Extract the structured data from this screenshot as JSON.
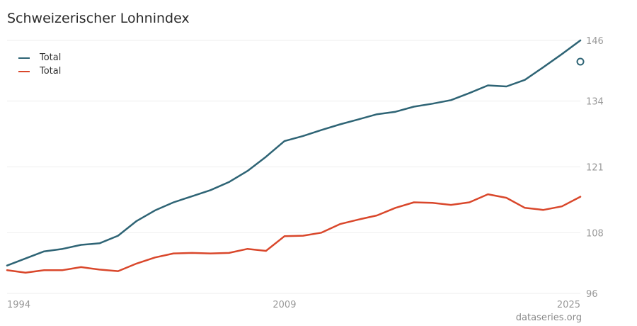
{
  "chart_data": {
    "type": "line",
    "title": "Schweizerischer Lohnindex",
    "xlabel": "",
    "ylabel": "",
    "x": [
      1994,
      1995,
      1996,
      1997,
      1998,
      1999,
      2000,
      2001,
      2002,
      2003,
      2004,
      2005,
      2006,
      2007,
      2008,
      2009,
      2010,
      2011,
      2012,
      2013,
      2014,
      2015,
      2016,
      2017,
      2018,
      2019,
      2020,
      2021,
      2022,
      2023,
      2024,
      2025
    ],
    "series": [
      {
        "name": "Total",
        "color": "#2e6475",
        "values": [
          101.5,
          102.9,
          104.3,
          104.8,
          105.6,
          105.9,
          107.4,
          110.3,
          112.4,
          114.0,
          115.2,
          116.4,
          118.0,
          120.2,
          123.0,
          126.1,
          127.1,
          128.3,
          129.4,
          130.4,
          131.4,
          131.9,
          132.9,
          133.5,
          134.2,
          135.6,
          137.1,
          136.9,
          138.2,
          140.7,
          143.3,
          146.0
        ]
      },
      {
        "name": "Total",
        "color": "#d9472b",
        "values": [
          100.6,
          100.1,
          100.6,
          100.6,
          101.2,
          100.7,
          100.4,
          101.9,
          103.1,
          103.9,
          104.0,
          103.9,
          104.0,
          104.8,
          104.4,
          107.3,
          107.4,
          108.0,
          109.7,
          110.6,
          111.4,
          112.9,
          114.0,
          113.9,
          113.5,
          114.0,
          115.6,
          114.9,
          112.9,
          112.5,
          113.2,
          115.1
        ]
      }
    ],
    "xticks": [
      "1994",
      "2009",
      "2025"
    ],
    "yticks": [
      "146",
      "134",
      "121",
      "108",
      "96"
    ],
    "ylim": [
      96,
      146
    ],
    "xlim": [
      1994,
      2025
    ],
    "grid": true,
    "legend_position": "top-left"
  },
  "watermark": "dataseries.org"
}
